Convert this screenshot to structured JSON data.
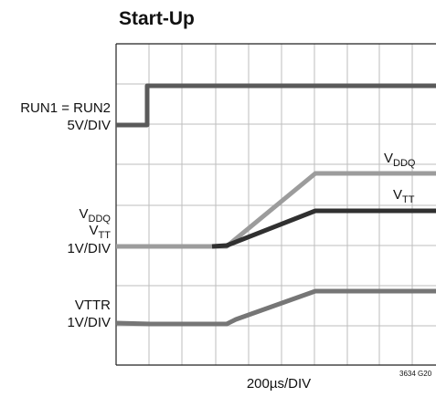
{
  "title": "Start-Up",
  "left_labels": {
    "run": "RUN1 = RUN2",
    "run_scale": "5V/DIV",
    "vddq": {
      "main": "V",
      "sub": "DDQ"
    },
    "vtt": {
      "main": "V",
      "sub": "TT"
    },
    "vddq_scale": "1V/DIV",
    "vttr": "VTTR",
    "vttr_scale": "1V/DIV"
  },
  "trace_labels": {
    "vddq": {
      "main": "V",
      "sub": "DDQ"
    },
    "vtt": {
      "main": "V",
      "sub": "TT"
    }
  },
  "time_scale": "200µs/DIV",
  "figure_id": "3634 G20"
}
